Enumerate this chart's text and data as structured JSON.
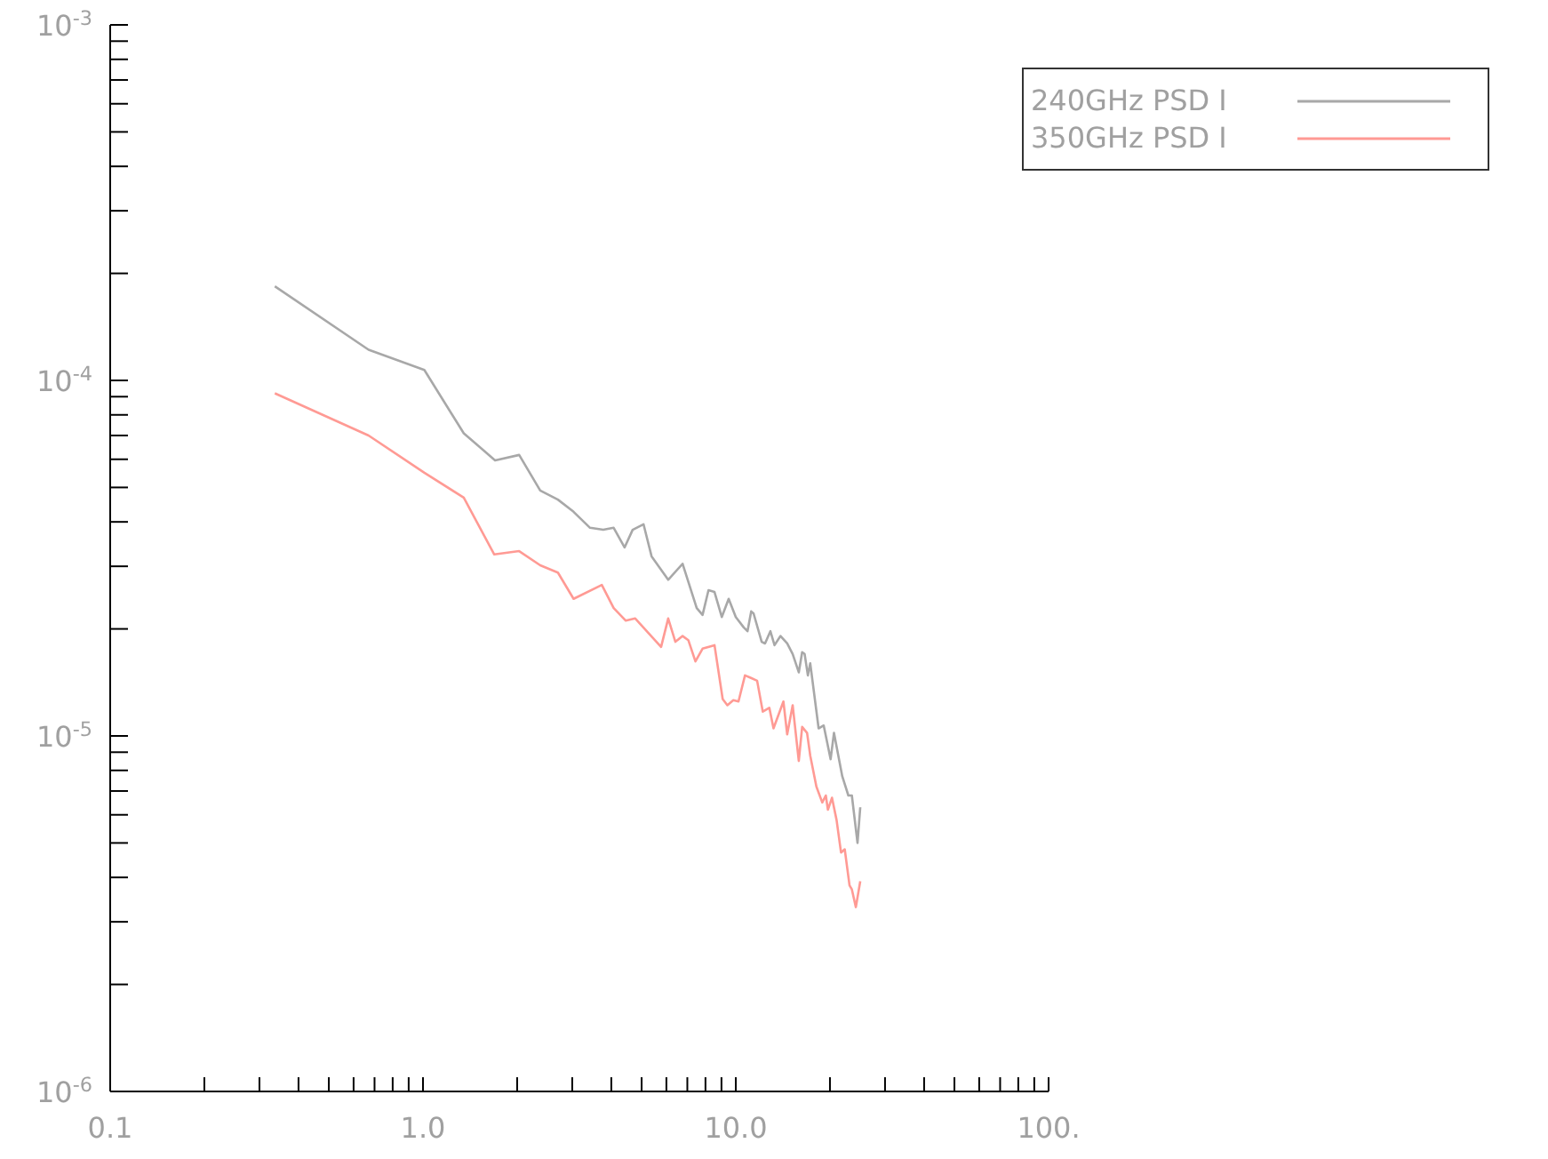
{
  "chart_data": {
    "type": "line",
    "log": "xy",
    "legend": "top right",
    "marker": "none",
    "line_style": "solid",
    "xlim": [
      0.1,
      100
    ],
    "xticks": [
      0.1,
      {
        "value": 0.2,
        "label": null
      },
      {
        "value": 0.3,
        "label": null
      },
      {
        "value": 0.4,
        "label": null
      },
      {
        "value": 0.5,
        "label": null
      },
      {
        "value": 0.6,
        "label": null
      },
      {
        "value": 0.7,
        "label": null
      },
      {
        "value": 0.8,
        "label": null
      },
      {
        "value": 0.9,
        "label": null
      },
      {
        "value": 1,
        "label": "1.0"
      },
      {
        "value": 2,
        "label": null
      },
      {
        "value": 3,
        "label": null
      },
      {
        "value": 4,
        "label": null
      },
      {
        "value": 5,
        "label": null
      },
      {
        "value": 6,
        "label": null
      },
      {
        "value": 7,
        "label": null
      },
      {
        "value": 8,
        "label": null
      },
      {
        "value": 9,
        "label": null
      },
      {
        "value": 10,
        "label": "10.0"
      },
      {
        "value": 20,
        "label": null
      },
      {
        "value": 30,
        "label": null
      },
      {
        "value": 40,
        "label": null
      },
      {
        "value": 50,
        "label": null
      },
      {
        "value": 60,
        "label": null
      },
      {
        "value": 70,
        "label": null
      },
      {
        "value": 80,
        "label": null
      },
      {
        "value": 90,
        "label": null
      },
      {
        "value": 100,
        "label": "100."
      }
    ],
    "ylim": [
      1e-06,
      0.001
    ],
    "yticks": [
      {
        "value": 1e-06,
        "label": "10$^{-6}$"
      },
      {
        "value": 2e-06,
        "label": null
      },
      {
        "value": 3e-06,
        "label": null
      },
      {
        "value": 4e-06,
        "label": null
      },
      {
        "value": 5e-06,
        "label": null
      },
      {
        "value": 6e-06,
        "label": null
      },
      {
        "value": 7e-06,
        "label": null
      },
      {
        "value": 8e-06,
        "label": null
      },
      {
        "value": 9e-06,
        "label": null
      },
      {
        "value": 1e-05,
        "label": "10$^{-5}$"
      },
      {
        "value": 2e-05,
        "label": null
      },
      {
        "value": 3e-05,
        "label": null
      },
      {
        "value": 4e-05,
        "label": null
      },
      {
        "value": 5e-05,
        "label": null
      },
      {
        "value": 6e-05,
        "label": null
      },
      {
        "value": 7e-05,
        "label": null
      },
      {
        "value": 8e-05,
        "label": null
      },
      {
        "value": 9e-05,
        "label": null
      },
      {
        "value": 0.0001,
        "label": "10$^{-4}$"
      },
      {
        "value": 0.0002,
        "label": null
      },
      {
        "value": 0.0003,
        "label": null
      },
      {
        "value": 0.0004,
        "label": null
      },
      {
        "value": 0.0005,
        "label": null
      },
      {
        "value": 0.0006,
        "label": null
      },
      {
        "value": 0.0007,
        "label": null
      },
      {
        "value": 0.0008,
        "label": null
      },
      {
        "value": 0.0009,
        "label": null
      },
      {
        "value": 0.001,
        "label": "10$^{-3}$"
      }
    ],
    "series": [
      {
        "name": "240GHz PSD I",
        "color": "#a8a8a8",
        "x": [
          0.336,
          0.67,
          1.01,
          1.35,
          1.7,
          2.03,
          2.37,
          2.7,
          3.03,
          3.42,
          3.77,
          4.07,
          4.41,
          4.68,
          5.07,
          5.38,
          6.08,
          6.76,
          7.5,
          7.83,
          8.18,
          8.55,
          9.02,
          9.49,
          10,
          10.6,
          10.9,
          11.2,
          11.4,
          12.1,
          12.4,
          12.9,
          13.3,
          13.9,
          14.6,
          15.2,
          15.9,
          16.3,
          16.6,
          17,
          17.3,
          18.4,
          19.1,
          20.1,
          20.6,
          21.9,
          22.9,
          23.5,
          24.5,
          25
        ],
        "values": [
          0.000184,
          0.000122,
          0.000107,
          7.1e-05,
          5.96e-05,
          6.17e-05,
          4.9e-05,
          4.62e-05,
          4.27e-05,
          3.85e-05,
          3.8e-05,
          3.85e-05,
          3.39e-05,
          3.8e-05,
          3.94e-05,
          3.2e-05,
          2.75e-05,
          3.05e-05,
          2.29e-05,
          2.19e-05,
          2.57e-05,
          2.54e-05,
          2.16e-05,
          2.43e-05,
          2.16e-05,
          2.02e-05,
          1.97e-05,
          2.24e-05,
          2.21e-05,
          1.84e-05,
          1.82e-05,
          1.97e-05,
          1.8e-05,
          1.91e-05,
          1.82e-05,
          1.7e-05,
          1.51e-05,
          1.72e-05,
          1.7e-05,
          1.48e-05,
          1.6e-05,
          1.05e-05,
          1.07e-05,
          8.6e-06,
          1.02e-05,
          7.7e-06,
          6.8e-06,
          6.8e-06,
          5e-06,
          6.3e-06
        ]
      },
      {
        "name": "350GHz PSD I",
        "color": "#ff9a94",
        "x": [
          0.336,
          0.67,
          1.01,
          1.35,
          1.69,
          2.03,
          2.37,
          2.7,
          3.03,
          3.73,
          4.07,
          4.45,
          4.77,
          5.77,
          6.08,
          6.41,
          6.76,
          7.05,
          7.43,
          7.83,
          8.55,
          9.08,
          9.4,
          9.82,
          10.2,
          10.7,
          11.1,
          11.7,
          12.2,
          12.8,
          13.2,
          14.2,
          14.6,
          15.2,
          15.9,
          16.3,
          16.9,
          17.3,
          18.1,
          18.9,
          19.4,
          19.7,
          20.3,
          21,
          21.7,
          22.3,
          23.1,
          23.5,
          24.2,
          25
        ],
        "values": [
          9.2e-05,
          7e-05,
          5.5e-05,
          4.68e-05,
          3.24e-05,
          3.31e-05,
          3.02e-05,
          2.88e-05,
          2.43e-05,
          2.66e-05,
          2.29e-05,
          2.11e-05,
          2.14e-05,
          1.78e-05,
          2.14e-05,
          1.84e-05,
          1.91e-05,
          1.86e-05,
          1.62e-05,
          1.76e-05,
          1.8e-05,
          1.27e-05,
          1.22e-05,
          1.26e-05,
          1.25e-05,
          1.48e-05,
          1.46e-05,
          1.43e-05,
          1.17e-05,
          1.2e-05,
          1.05e-05,
          1.25e-05,
          1.01e-05,
          1.22e-05,
          8.5e-06,
          1.06e-05,
          1.02e-05,
          8.8e-06,
          7.2e-06,
          6.5e-06,
          6.8e-06,
          6.2e-06,
          6.7e-06,
          5.8e-06,
          4.7e-06,
          4.8e-06,
          3.8e-06,
          3.7e-06,
          3.3e-06,
          3.9e-06
        ]
      }
    ]
  }
}
